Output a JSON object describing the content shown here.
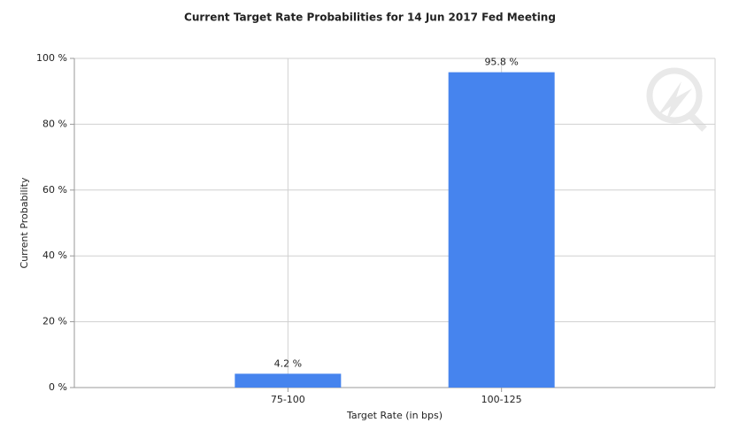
{
  "chart_data": {
    "type": "bar",
    "title": "Current Target Rate Probabilities for 14 Jun 2017 Fed Meeting",
    "x_label": "Target Rate (in bps)",
    "y_label": "Current Probability",
    "categories": [
      "75-100",
      "100-125"
    ],
    "values": [
      4.2,
      95.8
    ],
    "value_labels": [
      "4.2 %",
      "95.8 %"
    ],
    "color": "#4684ee",
    "ylim": [
      0,
      100
    ],
    "yticks": [
      {
        "value": 0,
        "label": "0 %"
      },
      {
        "value": 20,
        "label": "20 %"
      },
      {
        "value": 40,
        "label": "40 %"
      },
      {
        "value": 60,
        "label": "60 %"
      },
      {
        "value": 80,
        "label": "80 %"
      },
      {
        "value": 100,
        "label": "100 %"
      }
    ],
    "grid": true
  }
}
